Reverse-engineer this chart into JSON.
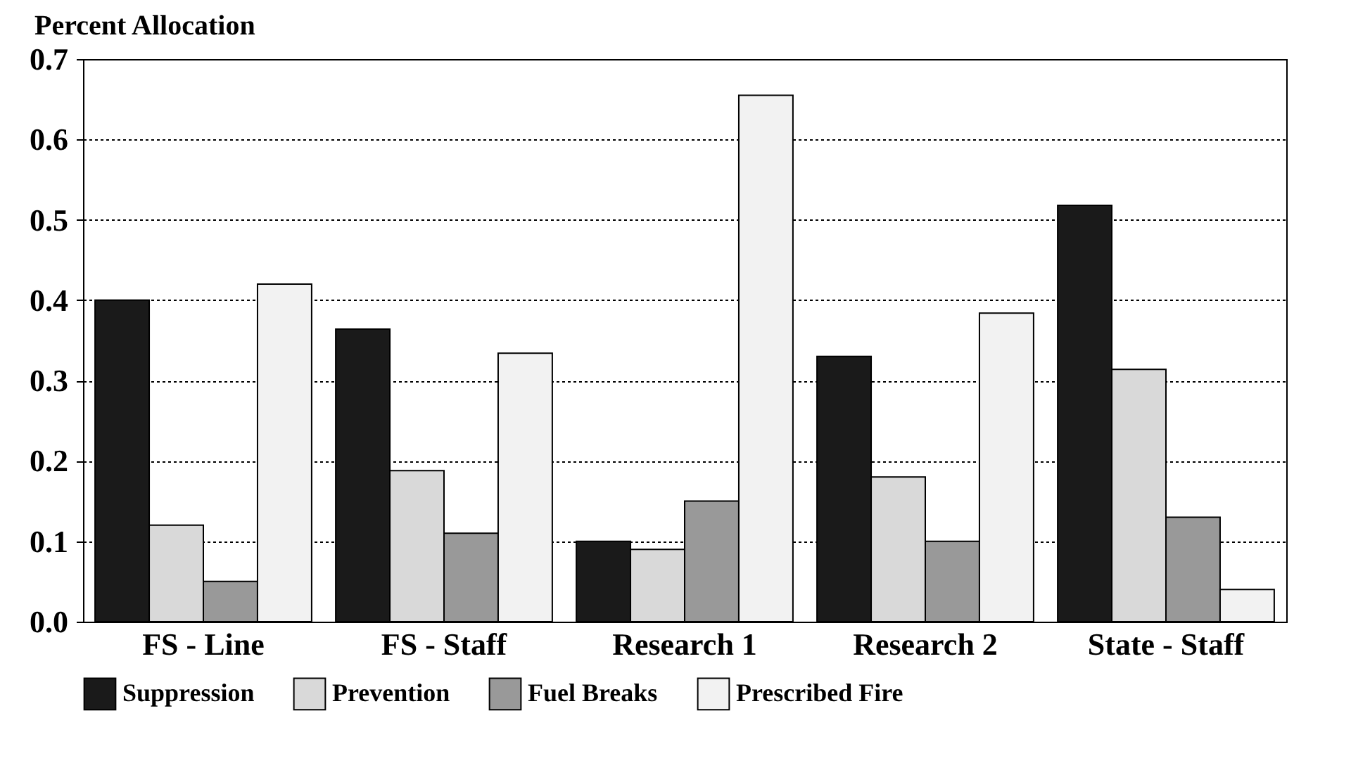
{
  "chart_data": {
    "type": "bar",
    "ylabel": "Percent Allocation",
    "categories": [
      "FS - Line",
      "FS - Staff",
      "Research 1",
      "Research 2",
      "State - Staff"
    ],
    "series": [
      {
        "name": "Suppression",
        "color": "#1a1a1a",
        "values": [
          0.4,
          0.364,
          0.1,
          0.33,
          0.518
        ]
      },
      {
        "name": "Prevention",
        "color": "#d9d9d9",
        "values": [
          0.12,
          0.188,
          0.09,
          0.18,
          0.314
        ]
      },
      {
        "name": "Fuel Breaks",
        "color": "#999999",
        "values": [
          0.05,
          0.11,
          0.15,
          0.1,
          0.13
        ]
      },
      {
        "name": "Prescribed Fire",
        "color": "#f2f2f2",
        "values": [
          0.42,
          0.334,
          0.655,
          0.384,
          0.04
        ]
      }
    ],
    "ylim": [
      0,
      0.7
    ],
    "yticks": [
      {
        "value": 0,
        "label": "0.0"
      },
      0.1,
      0.2,
      0.3,
      0.4,
      0.5,
      0.6,
      0.7
    ],
    "grid": "y",
    "legend": "bottom"
  }
}
